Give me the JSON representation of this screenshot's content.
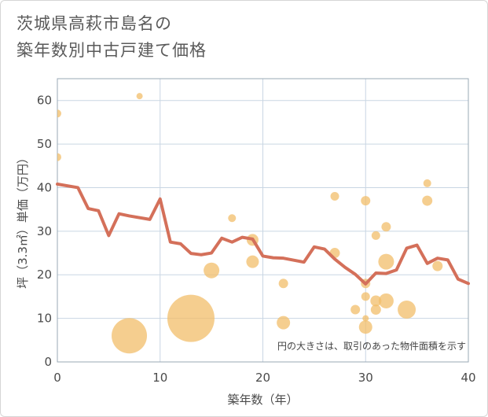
{
  "title": {
    "line1": "茨城県高萩市島名の",
    "line2": "築年数別中古戸建て価格"
  },
  "colors": {
    "bubble": "#f2be6a",
    "line": "#d4705a",
    "grid": "#c9d6e3",
    "plot_border": "#9aa8b6"
  },
  "chart_data": {
    "type": "scatter",
    "xlabel": "築年数（年）",
    "ylabel": "坪（3.3㎡）単価（万円）",
    "xlim": [
      0,
      40
    ],
    "ylim": [
      0,
      65
    ],
    "xticks": [
      "0",
      "10",
      "20",
      "30",
      "40"
    ],
    "yticks": [
      "0",
      "10",
      "20",
      "30",
      "40",
      "50",
      "60"
    ],
    "note": "円の大きさは、取引のあった物件面積を示す",
    "scatter": [
      {
        "x": 0,
        "y": 57,
        "size": 1
      },
      {
        "x": 0,
        "y": 47,
        "size": 1
      },
      {
        "x": 8,
        "y": 61,
        "size": 0.8
      },
      {
        "x": 7,
        "y": 6,
        "size": 4.5
      },
      {
        "x": 13,
        "y": 10,
        "size": 6
      },
      {
        "x": 15,
        "y": 21,
        "size": 2
      },
      {
        "x": 17,
        "y": 33,
        "size": 1
      },
      {
        "x": 19,
        "y": 28,
        "size": 1.5
      },
      {
        "x": 19,
        "y": 23,
        "size": 1.6
      },
      {
        "x": 22,
        "y": 18,
        "size": 1.2
      },
      {
        "x": 22,
        "y": 9,
        "size": 1.7
      },
      {
        "x": 27,
        "y": 38,
        "size": 1.1
      },
      {
        "x": 27,
        "y": 25,
        "size": 1.3
      },
      {
        "x": 29,
        "y": 12,
        "size": 1.2
      },
      {
        "x": 30,
        "y": 37,
        "size": 1.2
      },
      {
        "x": 30,
        "y": 18,
        "size": 1.2
      },
      {
        "x": 30,
        "y": 15,
        "size": 1.1
      },
      {
        "x": 30,
        "y": 10,
        "size": 0.8
      },
      {
        "x": 30,
        "y": 8,
        "size": 1.7
      },
      {
        "x": 31,
        "y": 29,
        "size": 1.1
      },
      {
        "x": 31,
        "y": 14,
        "size": 1.4
      },
      {
        "x": 31,
        "y": 12,
        "size": 1.3
      },
      {
        "x": 32,
        "y": 31,
        "size": 1.2
      },
      {
        "x": 32,
        "y": 23,
        "size": 2
      },
      {
        "x": 32,
        "y": 14,
        "size": 1.9
      },
      {
        "x": 34,
        "y": 12,
        "size": 2.3
      },
      {
        "x": 36,
        "y": 41,
        "size": 1
      },
      {
        "x": 36,
        "y": 37,
        "size": 1.3
      },
      {
        "x": 37,
        "y": 22,
        "size": 1.3
      }
    ],
    "series": [
      {
        "name": "平均坪単価",
        "x": [
          0,
          2,
          3,
          4,
          5,
          6,
          7,
          9,
          10,
          11,
          12,
          13,
          14,
          15,
          16,
          17,
          18,
          19,
          20,
          21,
          22,
          24,
          25,
          26,
          27,
          28,
          29,
          30,
          31,
          32,
          33,
          34,
          35,
          36,
          37,
          38,
          39,
          40
        ],
        "y": [
          40.8,
          40,
          35.2,
          34.7,
          29,
          34,
          33.5,
          32.7,
          37.4,
          27.5,
          27.1,
          24.9,
          24.6,
          25,
          28.4,
          27.5,
          28.6,
          28.2,
          24.3,
          23.9,
          23.8,
          22.9,
          26.4,
          25.9,
          23.6,
          21.7,
          20.1,
          17.9,
          20.4,
          20.3,
          21.1,
          26.1,
          26.8,
          22.6,
          23.8,
          23.4,
          19,
          18
        ]
      }
    ]
  }
}
